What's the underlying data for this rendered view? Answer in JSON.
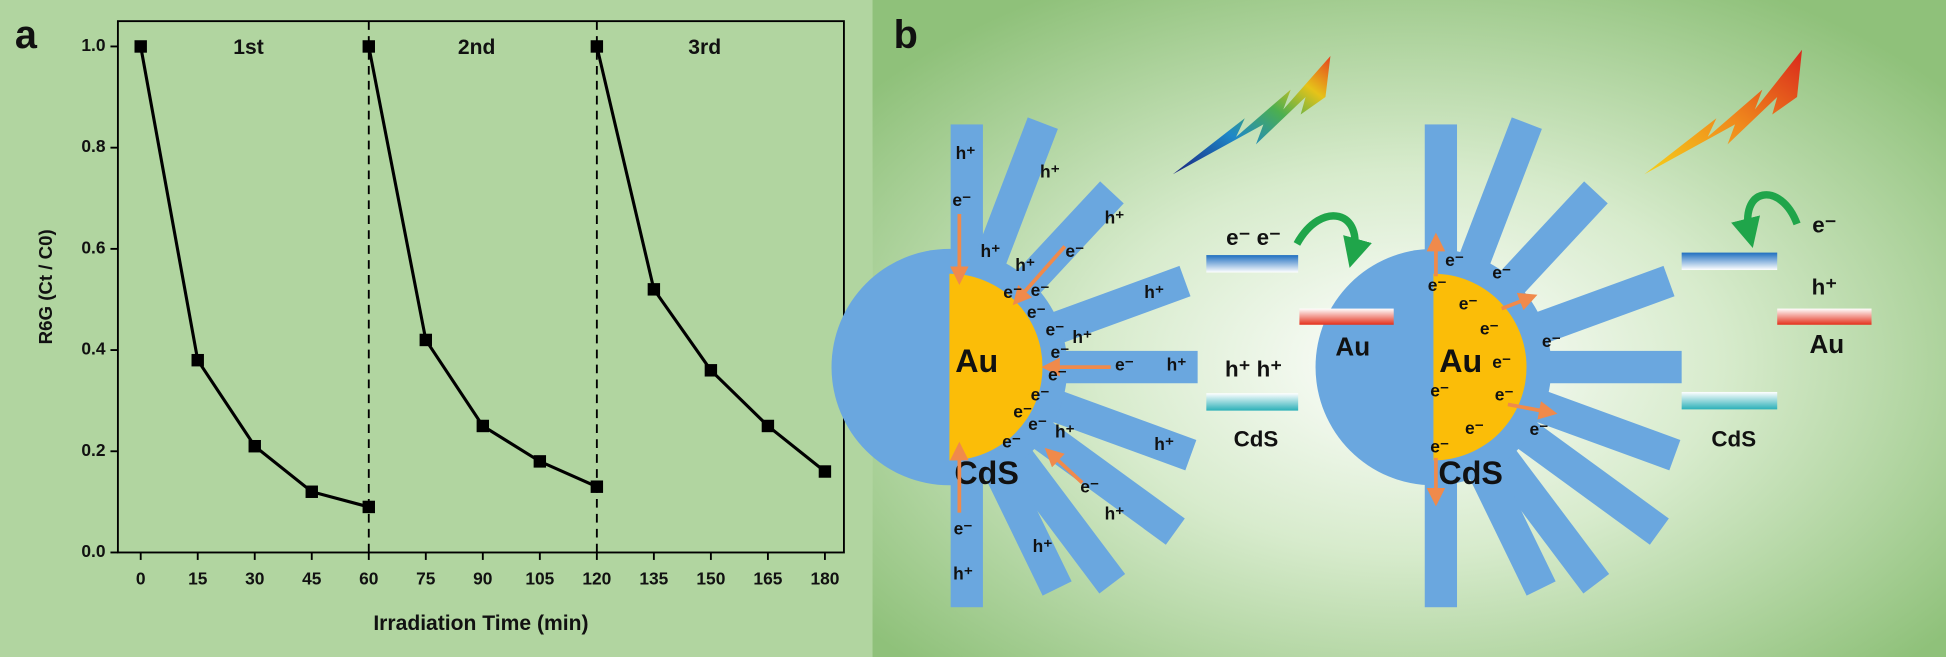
{
  "panel_labels": [
    "a",
    "b"
  ],
  "chart_data": {
    "type": "line",
    "x_label": "Irradiation Time (min)",
    "y_label": "R6G (Ct / C0)",
    "series": [
      {
        "name": "1st",
        "color": "#000000",
        "x": [
          0,
          15,
          30,
          45,
          60
        ],
        "values": [
          1.0,
          0.38,
          0.21,
          0.12,
          0.09
        ]
      },
      {
        "name": "2nd",
        "color": "#000000",
        "x": [
          60,
          75,
          90,
          105,
          120
        ],
        "values": [
          1.0,
          0.42,
          0.25,
          0.18,
          0.13
        ]
      },
      {
        "name": "3rd",
        "color": "#000000",
        "x": [
          120,
          135,
          150,
          165,
          180
        ],
        "values": [
          1.0,
          0.52,
          0.36,
          0.25,
          0.16
        ]
      }
    ],
    "xlim": [
      -6,
      185
    ],
    "xticks": [
      0,
      15,
      30,
      45,
      60,
      75,
      90,
      105,
      120,
      135,
      150,
      165,
      180
    ],
    "ylim": [
      0,
      1.05
    ],
    "yticks": [
      {
        "value": 0,
        "label": "0.0"
      },
      0.2,
      0.4,
      0.6,
      0.8,
      {
        "value": 1,
        "label": "1.0"
      }
    ],
    "dividers": [
      60,
      120
    ],
    "marker": "square"
  },
  "diagram": {
    "left": {
      "core": "Au",
      "shell": "CdS",
      "charges": [
        "h⁺",
        "h⁺",
        "h⁺",
        "e⁻",
        "h⁺",
        "h⁺",
        "e⁻",
        "h⁺",
        "e⁻",
        "e⁻",
        "e⁻",
        "e⁻",
        "h⁺",
        "e⁻",
        "e⁻",
        "h⁺",
        "e⁻",
        "e⁻",
        "e⁻",
        "e⁻",
        "h⁺",
        "e⁻",
        "e⁻",
        "h⁺",
        "h⁺",
        "h⁺",
        "e⁻",
        "h⁺"
      ],
      "levels": {
        "cb_label": "e⁻  e⁻",
        "metal": "Au",
        "vb_label": "h⁺  h⁺",
        "semiconductor": "CdS"
      }
    },
    "right": {
      "core": "Au",
      "shell": "CdS",
      "charges": [
        "e⁻",
        "e⁻",
        "e⁻",
        "e⁻",
        "e⁻",
        "e⁻",
        "e⁻",
        "e⁻",
        "e⁻",
        "e⁻",
        "e⁻",
        "e⁻"
      ],
      "levels": {
        "cb_label": "e⁻",
        "vb_label": "h⁺",
        "metal": "Au",
        "semiconductor": "CdS"
      }
    }
  }
}
